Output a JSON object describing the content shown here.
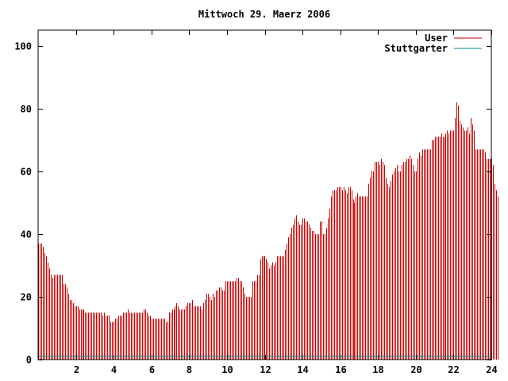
{
  "chart_data": {
    "type": "bar",
    "title": "Mittwoch 29. Maerz 2006",
    "xlim": [
      0,
      24
    ],
    "ylim": [
      0,
      105
    ],
    "x_ticks": [
      2,
      4,
      6,
      8,
      10,
      12,
      14,
      16,
      18,
      20,
      22,
      24
    ],
    "y_ticks": [
      0,
      20,
      40,
      60,
      80,
      100
    ],
    "grid": false,
    "legend_position": "top-right",
    "series": [
      {
        "name": "User",
        "color": "#cc0000",
        "style": "impulses",
        "sample_step_hours": 0.08333,
        "values": [
          37,
          37,
          37,
          36,
          34,
          33,
          31,
          29,
          27,
          26,
          27,
          27,
          27,
          27,
          27,
          27,
          24,
          24,
          23,
          21,
          19,
          19,
          18,
          17,
          17,
          17,
          16,
          16,
          16,
          16,
          15,
          15,
          15,
          15,
          15,
          15,
          15,
          15,
          15,
          15,
          15,
          14,
          15,
          14,
          14,
          14,
          12,
          12,
          12,
          13,
          13,
          14,
          14,
          14,
          15,
          15,
          15,
          16,
          15,
          15,
          15,
          15,
          15,
          15,
          15,
          15,
          15,
          16,
          16,
          15,
          14,
          14,
          13,
          13,
          13,
          13,
          13,
          13,
          13,
          13,
          13,
          12,
          12,
          15,
          15,
          16,
          16,
          17,
          18,
          17,
          16,
          16,
          16,
          16,
          17,
          18,
          18,
          18,
          19,
          17,
          17,
          17,
          17,
          17,
          16,
          18,
          19,
          21,
          21,
          20,
          19,
          21,
          20,
          22,
          22,
          23,
          23,
          22,
          22,
          25,
          25,
          25,
          25,
          25,
          25,
          25,
          26,
          26,
          25,
          25,
          23,
          21,
          20,
          20,
          20,
          20,
          25,
          25,
          25,
          27,
          27,
          32,
          33,
          33,
          33,
          32,
          31,
          29,
          30,
          31,
          30,
          31,
          33,
          33,
          33,
          33,
          33,
          35,
          37,
          39,
          40,
          42,
          43,
          45,
          46,
          44,
          43,
          43,
          45,
          45,
          44,
          44,
          43,
          42,
          41,
          41,
          40,
          40,
          40,
          44,
          44,
          40,
          40,
          42,
          45,
          48,
          52,
          54,
          54,
          54,
          55,
          55,
          55,
          54,
          55,
          54,
          53,
          55,
          55,
          54,
          51,
          50,
          52,
          53,
          52,
          52,
          52,
          52,
          52,
          52,
          56,
          58,
          60,
          60,
          63,
          63,
          63,
          62,
          64,
          63,
          62,
          58,
          56,
          55,
          57,
          59,
          60,
          61,
          62,
          60,
          60,
          62,
          63,
          63,
          64,
          64,
          65,
          64,
          62,
          60,
          60,
          64,
          66,
          65,
          67,
          67,
          67,
          67,
          67,
          67,
          70,
          70,
          71,
          71,
          71,
          71,
          72,
          71,
          71,
          72,
          73,
          72,
          73,
          73,
          73,
          77,
          82,
          81,
          76,
          75,
          74,
          73,
          73,
          74,
          72,
          77,
          75,
          73,
          67,
          67,
          67,
          67,
          67,
          67,
          66,
          64,
          64,
          64,
          64,
          62,
          56,
          54,
          52
        ]
      },
      {
        "name": "Stuttgarter",
        "color": "#008b8b",
        "style": "impulses",
        "values": [
          1
        ]
      }
    ]
  }
}
